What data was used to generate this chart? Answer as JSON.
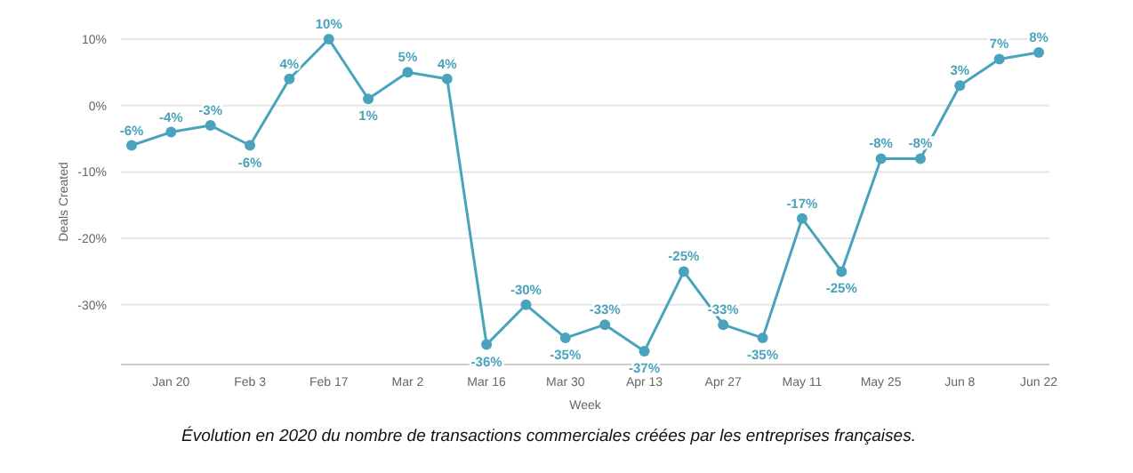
{
  "chart_data": {
    "type": "line",
    "xlabel": "Week",
    "ylabel": "Deals Created",
    "categories": [
      null,
      "Jan 20",
      null,
      "Feb 3",
      null,
      "Feb 17",
      null,
      "Mar 2",
      null,
      "Mar 16",
      null,
      "Mar 30",
      null,
      "Apr 13",
      null,
      "Apr 27",
      null,
      "May 11",
      null,
      "May 25",
      null,
      "Jun 8",
      null,
      "Jun 22"
    ],
    "series": [
      {
        "color": "#4aa3bc",
        "values": [
          -6,
          -4,
          -3,
          -6,
          4,
          10,
          1,
          5,
          4,
          -36,
          -30,
          -35,
          -33,
          -37,
          -25,
          -33,
          -35,
          -17,
          -25,
          -8,
          -8,
          3,
          7,
          8
        ],
        "value_labels": [
          "-6%",
          "-4%",
          "-3%",
          "-6%",
          "4%",
          "10%",
          "1%",
          "5%",
          "4%",
          "-36%",
          "-30%",
          "-35%",
          "-33%",
          "-37%",
          "-25%",
          "-33%",
          "-35%",
          "-17%",
          "-25%",
          "-8%",
          "-8%",
          "3%",
          "7%",
          "8%"
        ]
      }
    ],
    "ylim": [
      -39,
      10
    ],
    "yticks": [
      {
        "value": -30,
        "label": "-30%"
      },
      {
        "value": -20,
        "label": "-20%"
      },
      {
        "value": -10,
        "label": "-10%"
      },
      {
        "value": 0,
        "label": "0%"
      },
      {
        "value": 10,
        "label": "10%"
      }
    ],
    "grid": "y",
    "marker": "circle",
    "line_style": "solid",
    "annotations": [
      "Évolution en 2020 du nombre de transactions commerciales créées par les entreprises françaises."
    ]
  }
}
